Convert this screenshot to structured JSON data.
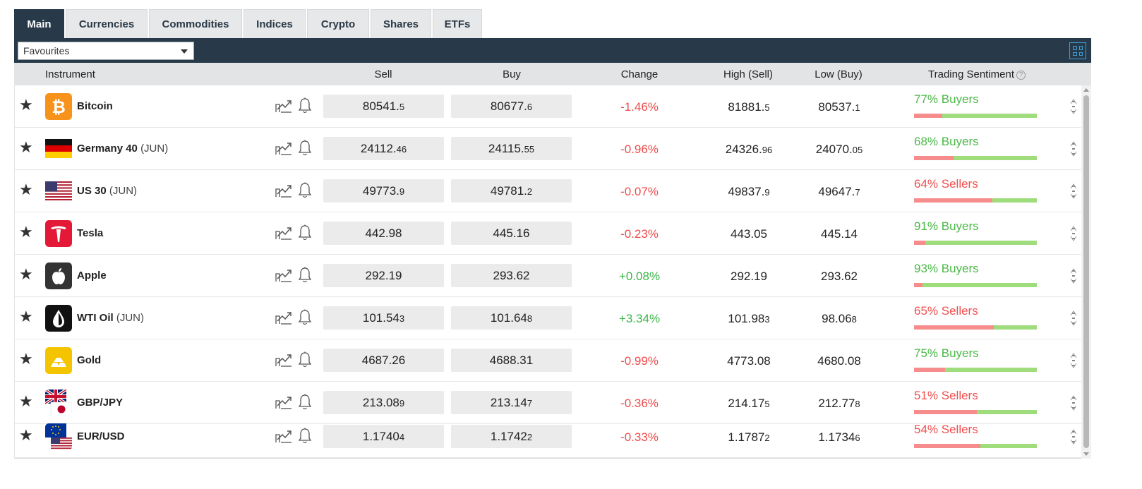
{
  "tabs": [
    {
      "label": "Main",
      "active": true
    },
    {
      "label": "Currencies",
      "active": false
    },
    {
      "label": "Commodities",
      "active": false
    },
    {
      "label": "Indices",
      "active": false
    },
    {
      "label": "Crypto",
      "active": false
    },
    {
      "label": "Shares",
      "active": false
    },
    {
      "label": "ETFs",
      "active": false
    }
  ],
  "toolbar": {
    "watchlist_selected": "Favourites",
    "layout_toggle_icon": "grid-view-icon"
  },
  "columns": {
    "instrument": "Instrument",
    "sell": "Sell",
    "buy": "Buy",
    "change": "Change",
    "high": "High (Sell)",
    "low": "Low (Buy)",
    "sentiment": "Trading Sentiment",
    "sentiment_help": "?"
  },
  "colors": {
    "header_bg": "#283a4a",
    "negative": "#ef4b4b",
    "positive": "#3bb44a",
    "sellers_bar": "#f68c8c",
    "buyers_bar": "#9fdc7c"
  },
  "rows": [
    {
      "star": "★",
      "icon": "bitcoin-icon",
      "name": "Bitcoin",
      "sub": "",
      "sell_main": "80541.",
      "sell_small": "5",
      "buy_main": "80677.",
      "buy_small": "6",
      "change": "-1.46%",
      "change_dir": "neg",
      "high_main": "81881.",
      "high_small": "5",
      "low_main": "80537.",
      "low_small": "1",
      "sentiment": "77% Buyers",
      "sentiment_side": "buyers",
      "sellers_pct": 23
    },
    {
      "star": "★",
      "icon": "germany-flag-icon",
      "name": "Germany 40",
      "sub": "(JUN)",
      "sell_main": "24112.",
      "sell_small": "46",
      "buy_main": "24115.",
      "buy_small": "55",
      "change": "-0.96%",
      "change_dir": "neg",
      "high_main": "24326.",
      "high_small": "96",
      "low_main": "24070.",
      "low_small": "05",
      "sentiment": "68% Buyers",
      "sentiment_side": "buyers",
      "sellers_pct": 32
    },
    {
      "star": "★",
      "icon": "us-flag-icon",
      "name": "US 30",
      "sub": "(JUN)",
      "sell_main": "49773.",
      "sell_small": "9",
      "buy_main": "49781.",
      "buy_small": "2",
      "change": "-0.07%",
      "change_dir": "neg",
      "high_main": "49837.",
      "high_small": "9",
      "low_main": "49647.",
      "low_small": "7",
      "sentiment": "64% Sellers",
      "sentiment_side": "sellers",
      "sellers_pct": 64
    },
    {
      "star": "★",
      "icon": "tesla-icon",
      "name": "Tesla",
      "sub": "",
      "sell_main": "442.98",
      "sell_small": "",
      "buy_main": "445.16",
      "buy_small": "",
      "change": "-0.23%",
      "change_dir": "neg",
      "high_main": "443.05",
      "high_small": "",
      "low_main": "445.14",
      "low_small": "",
      "sentiment": "91% Buyers",
      "sentiment_side": "buyers",
      "sellers_pct": 9
    },
    {
      "star": "★",
      "icon": "apple-icon",
      "name": "Apple",
      "sub": "",
      "sell_main": "292.19",
      "sell_small": "",
      "buy_main": "293.62",
      "buy_small": "",
      "change": "+0.08%",
      "change_dir": "pos",
      "high_main": "292.19",
      "high_small": "",
      "low_main": "293.62",
      "low_small": "",
      "sentiment": "93% Buyers",
      "sentiment_side": "buyers",
      "sellers_pct": 7
    },
    {
      "star": "★",
      "icon": "oil-drop-icon",
      "name": "WTI Oil",
      "sub": "(JUN)",
      "sell_main": "101.54",
      "sell_small": "3",
      "buy_main": "101.64",
      "buy_small": "8",
      "change": "+3.34%",
      "change_dir": "pos",
      "high_main": "101.98",
      "high_small": "3",
      "low_main": "98.06",
      "low_small": "8",
      "sentiment": "65% Sellers",
      "sentiment_side": "sellers",
      "sellers_pct": 65
    },
    {
      "star": "★",
      "icon": "gold-bars-icon",
      "name": "Gold",
      "sub": "",
      "sell_main": "4687.26",
      "sell_small": "",
      "buy_main": "4688.31",
      "buy_small": "",
      "change": "-0.99%",
      "change_dir": "neg",
      "high_main": "4773.08",
      "high_small": "",
      "low_main": "4680.08",
      "low_small": "",
      "sentiment": "75% Buyers",
      "sentiment_side": "buyers",
      "sellers_pct": 25
    },
    {
      "star": "★",
      "icon": "gbp-jpy-flags-icon",
      "name": "GBP/JPY",
      "sub": "",
      "sell_main": "213.08",
      "sell_small": "9",
      "buy_main": "213.14",
      "buy_small": "7",
      "change": "-0.36%",
      "change_dir": "neg",
      "high_main": "214.17",
      "high_small": "5",
      "low_main": "212.77",
      "low_small": "8",
      "sentiment": "51% Sellers",
      "sentiment_side": "sellers",
      "sellers_pct": 51
    },
    {
      "star": "★",
      "icon": "eur-usd-flags-icon",
      "name": "EUR/USD",
      "sub": "",
      "sell_main": "1.1740",
      "sell_small": "4",
      "buy_main": "1.1742",
      "buy_small": "2",
      "change": "-0.33%",
      "change_dir": "neg",
      "high_main": "1.1787",
      "high_small": "2",
      "low_main": "1.1734",
      "low_small": "6",
      "sentiment": "54% Sellers",
      "sentiment_side": "sellers",
      "sellers_pct": 54
    }
  ]
}
